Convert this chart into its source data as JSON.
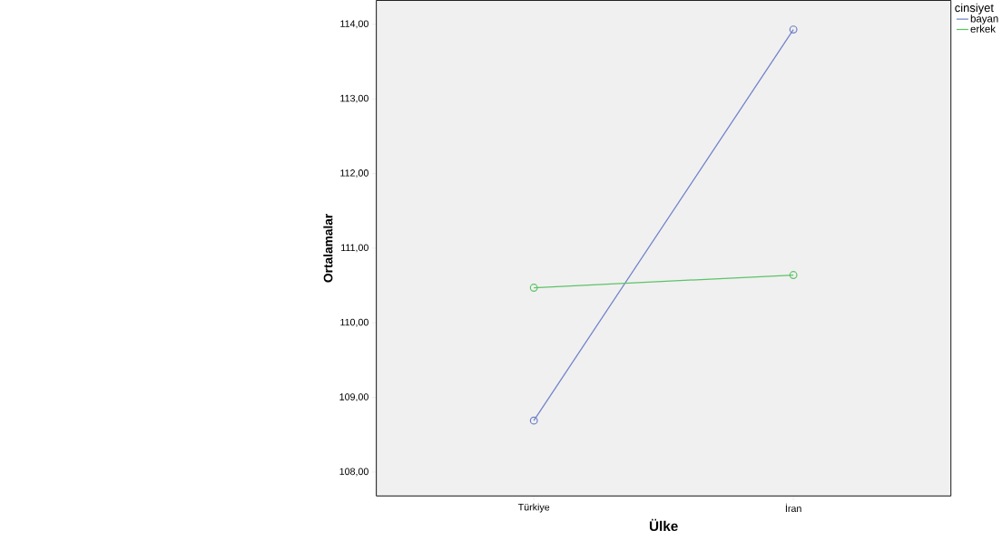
{
  "chart_data": {
    "type": "line",
    "xlabel": "Ülke",
    "ylabel": "Ortalamalar",
    "legend_title": "cinsiyet",
    "categories": [
      "Türkiye",
      "İran"
    ],
    "series": [
      {
        "name": "bayan",
        "color": "#6f80c8",
        "values": [
          108.69,
          113.93
        ]
      },
      {
        "name": "erkek",
        "color": "#5cc366",
        "values": [
          110.47,
          110.64
        ]
      }
    ],
    "ylim": [
      107.68,
      114.32
    ],
    "yticks": [
      {
        "value": 108,
        "label": "108,00"
      },
      {
        "value": 109,
        "label": "109,00"
      },
      {
        "value": 110,
        "label": "110,00"
      },
      {
        "value": 111,
        "label": "111,00"
      },
      {
        "value": 112,
        "label": "112,00"
      },
      {
        "value": 113,
        "label": "113,00"
      },
      {
        "value": 114,
        "label": "114,00"
      }
    ],
    "legend": "right",
    "marker": "circle",
    "line_style": "solid",
    "grid": false
  }
}
